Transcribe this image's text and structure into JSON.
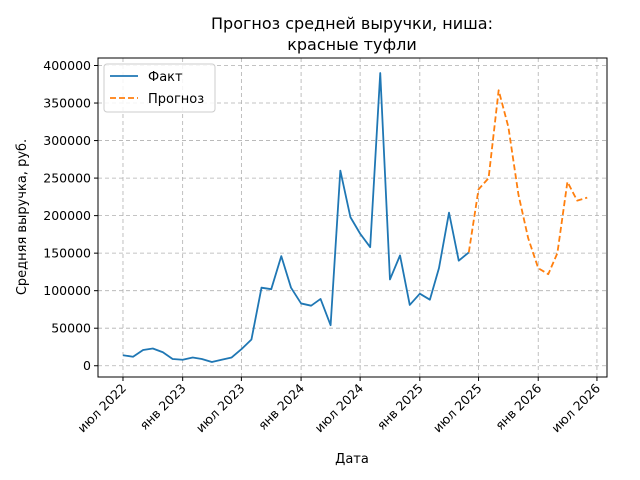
{
  "chart_data": {
    "type": "line",
    "title_lines": [
      "Прогноз средней выручки, ниша:",
      "красные туфли"
    ],
    "xlabel": "Дата",
    "ylabel": "Средняя выручка, руб.",
    "x_tick_labels": [
      "июл 2022",
      "янв 2023",
      "июл 2023",
      "янв 2024",
      "июл 2024",
      "янв 2025",
      "июл 2025",
      "янв 2026",
      "июл 2026"
    ],
    "y_tick_labels": [
      "0",
      "50000",
      "100000",
      "150000",
      "200000",
      "250000",
      "300000",
      "350000",
      "400000"
    ],
    "ylim": [
      -15000,
      410000
    ],
    "xlim": [
      "2022-04-15",
      "2026-08-01"
    ],
    "grid": true,
    "legend_position": "top-left",
    "series": [
      {
        "name": "Факт",
        "color": "#1f77b4",
        "style": "solid",
        "points": [
          [
            "2022-07-01",
            14000
          ],
          [
            "2022-08-01",
            12000
          ],
          [
            "2022-09-01",
            21000
          ],
          [
            "2022-10-01",
            23000
          ],
          [
            "2022-11-01",
            18000
          ],
          [
            "2022-12-01",
            9000
          ],
          [
            "2023-01-01",
            8000
          ],
          [
            "2023-02-01",
            11000
          ],
          [
            "2023-03-01",
            9000
          ],
          [
            "2023-04-01",
            5000
          ],
          [
            "2023-05-01",
            8000
          ],
          [
            "2023-06-01",
            11000
          ],
          [
            "2023-07-01",
            22000
          ],
          [
            "2023-08-01",
            35000
          ],
          [
            "2023-09-01",
            104000
          ],
          [
            "2023-10-01",
            102000
          ],
          [
            "2023-11-01",
            146000
          ],
          [
            "2023-12-01",
            104000
          ],
          [
            "2024-01-01",
            83000
          ],
          [
            "2024-02-01",
            80000
          ],
          [
            "2024-03-01",
            89000
          ],
          [
            "2024-04-01",
            54000
          ],
          [
            "2024-05-01",
            260000
          ],
          [
            "2024-06-01",
            198000
          ],
          [
            "2024-07-01",
            176000
          ],
          [
            "2024-08-01",
            158000
          ],
          [
            "2024-09-01",
            390000
          ],
          [
            "2024-10-01",
            115000
          ],
          [
            "2024-11-01",
            147000
          ],
          [
            "2024-12-01",
            81000
          ],
          [
            "2025-01-01",
            96000
          ],
          [
            "2025-02-01",
            88000
          ],
          [
            "2025-03-01",
            130000
          ],
          [
            "2025-04-01",
            204000
          ],
          [
            "2025-05-01",
            140000
          ],
          [
            "2025-06-01",
            151000
          ]
        ]
      },
      {
        "name": "Прогноз",
        "color": "#ff7f0e",
        "style": "dashed",
        "points": [
          [
            "2025-06-01",
            151000
          ],
          [
            "2025-07-01",
            235000
          ],
          [
            "2025-08-01",
            250000
          ],
          [
            "2025-09-01",
            367000
          ],
          [
            "2025-10-01",
            318000
          ],
          [
            "2025-11-01",
            228000
          ],
          [
            "2025-12-01",
            170000
          ],
          [
            "2026-01-01",
            130000
          ],
          [
            "2026-02-01",
            122000
          ],
          [
            "2026-03-01",
            150000
          ],
          [
            "2026-04-01",
            245000
          ],
          [
            "2026-05-01",
            220000
          ],
          [
            "2026-06-01",
            224000
          ]
        ]
      }
    ]
  }
}
